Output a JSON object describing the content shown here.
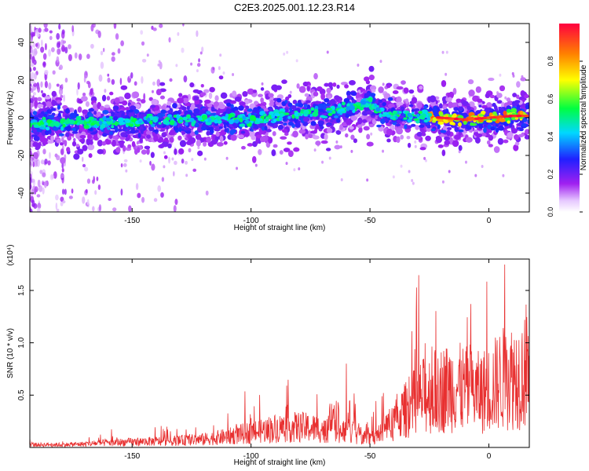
{
  "title": "C2E3.2025.001.12.23.R14",
  "colors": {
    "snr_line": "#e83030",
    "colormap": [
      "#ffffff",
      "#e6c8ff",
      "#a020f0",
      "#2020ff",
      "#00d8ff",
      "#00ff40",
      "#ffff00",
      "#ff8000",
      "#ff0040"
    ]
  },
  "chart_data": [
    {
      "type": "heatmap",
      "title": "",
      "xlabel": "Height of straight line (km)",
      "ylabel": "Frequency (Hz)",
      "xlim": [
        -193,
        17
      ],
      "ylim": [
        -50,
        50
      ],
      "xticks": [
        -150,
        -100,
        -50,
        0
      ],
      "yticks": [
        -40,
        -20,
        0,
        20,
        40
      ],
      "colorbar": {
        "label": "Normalized spectral amplitude",
        "range": [
          0,
          1
        ],
        "ticks": [
          "0.0",
          "0.2",
          "0.4",
          "0.6",
          "0.8"
        ]
      },
      "ridge": {
        "description_points_x": [
          -193,
          -170,
          -150,
          -130,
          -110,
          -100,
          -90,
          -80,
          -70,
          -60,
          -55,
          -50,
          -45,
          -40,
          -30,
          -20,
          -10,
          0,
          10,
          17
        ],
        "description_points_y": [
          -3,
          -3,
          -2,
          -1,
          0,
          -1,
          1,
          2,
          3,
          5,
          7,
          8,
          3,
          2,
          1,
          0,
          -1,
          0,
          1,
          1
        ]
      }
    },
    {
      "type": "line",
      "title": "",
      "xlabel": "Height of straight line (km)",
      "ylabel": "SNR (10 * v/v)",
      "y_multiplier": "(x10⁴)",
      "xlim": [
        -193,
        17
      ],
      "ylim": [
        0,
        1.8
      ],
      "xticks": [
        -150,
        -100,
        -50,
        0
      ],
      "yticks": [
        0.5,
        1.0,
        1.5
      ],
      "yticklabels": [
        "0.5",
        "1.0",
        "1.5"
      ],
      "series": [
        {
          "x": [
            -193,
            -180,
            -170,
            -160,
            -150,
            -140,
            -130,
            -120,
            -110,
            -100,
            -90,
            -80,
            -70,
            -60,
            -55,
            -50,
            -45,
            -40,
            -35,
            -30,
            -25,
            -20,
            -15,
            -10,
            -5,
            0,
            5,
            10,
            15,
            17
          ],
          "values": [
            0.04,
            0.04,
            0.05,
            0.07,
            0.08,
            0.09,
            0.1,
            0.12,
            0.16,
            0.22,
            0.28,
            0.3,
            0.27,
            0.25,
            0.18,
            0.15,
            0.2,
            0.38,
            0.55,
            0.7,
            0.8,
            0.85,
            0.9,
            0.85,
            0.8,
            0.85,
            1.0,
            1.05,
            1.1,
            1.15
          ]
        }
      ]
    }
  ]
}
